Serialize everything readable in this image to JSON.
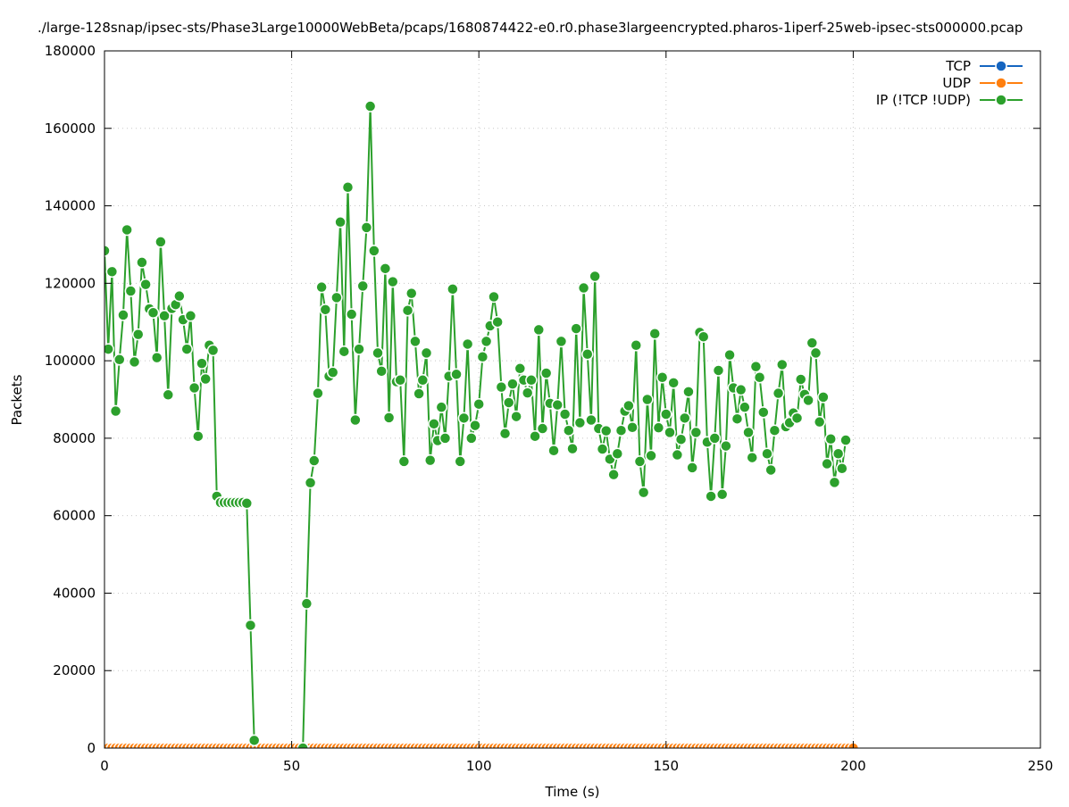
{
  "chart_data": {
    "type": "line",
    "title": "./large-128snap/ipsec-sts/Phase3Large10000WebBeta/pcaps/1680874422-e0.r0.phase3largeencrypted.pharos-1iperf-25web-ipsec-sts000000.pcap",
    "x_label": "Time (s)",
    "y_label": "Packets",
    "xlim": [
      0,
      250
    ],
    "xticks": [
      0,
      50,
      100,
      150,
      200,
      250
    ],
    "ylim": [
      0,
      180000
    ],
    "yticks": [
      0,
      20000,
      40000,
      60000,
      80000,
      100000,
      120000,
      140000,
      160000,
      180000
    ],
    "grid": true,
    "legend": "top-right",
    "x": [
      0,
      1,
      2,
      3,
      4,
      5,
      6,
      7,
      8,
      9,
      10,
      11,
      12,
      13,
      14,
      15,
      16,
      17,
      18,
      19,
      20,
      21,
      22,
      23,
      24,
      25,
      26,
      27,
      28,
      29,
      30,
      31,
      32,
      33,
      34,
      35,
      36,
      37,
      38,
      39,
      40,
      41,
      42,
      43,
      44,
      45,
      46,
      47,
      48,
      49,
      50,
      51,
      52,
      53,
      54,
      55,
      56,
      57,
      58,
      59,
      60,
      61,
      62,
      63,
      64,
      65,
      66,
      67,
      68,
      69,
      70,
      71,
      72,
      73,
      74,
      75,
      76,
      77,
      78,
      79,
      80,
      81,
      82,
      83,
      84,
      85,
      86,
      87,
      88,
      89,
      90,
      91,
      92,
      93,
      94,
      95,
      96,
      97,
      98,
      99,
      100,
      101,
      102,
      103,
      104,
      105,
      106,
      107,
      108,
      109,
      110,
      111,
      112,
      113,
      114,
      115,
      116,
      117,
      118,
      119,
      120,
      121,
      122,
      123,
      124,
      125,
      126,
      127,
      128,
      129,
      130,
      131,
      132,
      133,
      134,
      135,
      136,
      137,
      138,
      139,
      140,
      141,
      142,
      143,
      144,
      145,
      146,
      147,
      148,
      149,
      150,
      151,
      152,
      153,
      154,
      155,
      156,
      157,
      158,
      159,
      160,
      161,
      162,
      163,
      164,
      165,
      166,
      167,
      168,
      169,
      170,
      171,
      172,
      173,
      174,
      175,
      176,
      177,
      178,
      179,
      180,
      181,
      182,
      183,
      184,
      185,
      186,
      187,
      188,
      189,
      190,
      191,
      192,
      193,
      194,
      195,
      196,
      197,
      198,
      199,
      200
    ],
    "series": [
      {
        "name": "TCP",
        "color": "#1565c0",
        "values": [
          0,
          0,
          0,
          0,
          0,
          0,
          0,
          0,
          0,
          0,
          0,
          0,
          0,
          0,
          0,
          0,
          0,
          0,
          0,
          0,
          0,
          0,
          0,
          0,
          0,
          0,
          0,
          0,
          0,
          0,
          0,
          0,
          0,
          0,
          0,
          0,
          0,
          0,
          0,
          0,
          0,
          0,
          0,
          0,
          0,
          0,
          0,
          0,
          0,
          0,
          0,
          0,
          0,
          0,
          0,
          0,
          0,
          0,
          0,
          0,
          0,
          0,
          0,
          0,
          0,
          0,
          0,
          0,
          0,
          0,
          0,
          0,
          0,
          0,
          0,
          0,
          0,
          0,
          0,
          0,
          0,
          0,
          0,
          0,
          0,
          0,
          0,
          0,
          0,
          0,
          0,
          0,
          0,
          0,
          0,
          0,
          0,
          0,
          0,
          0,
          0,
          0,
          0,
          0,
          0,
          0,
          0,
          0,
          0,
          0,
          0,
          0,
          0,
          0,
          0,
          0,
          0,
          0,
          0,
          0,
          0,
          0,
          0,
          0,
          0,
          0,
          0,
          0,
          0,
          0,
          0,
          0,
          0,
          0,
          0,
          0,
          0,
          0,
          0,
          0,
          0,
          0,
          0,
          0,
          0,
          0,
          0,
          0,
          0,
          0,
          0,
          0,
          0,
          0,
          0,
          0,
          0,
          0,
          0,
          0,
          0,
          0,
          0,
          0,
          0,
          0,
          0,
          0,
          0,
          0,
          0,
          0,
          0,
          0,
          0,
          0,
          0,
          0,
          0,
          0,
          0,
          0,
          0,
          0,
          0,
          0,
          0,
          0,
          0,
          0,
          0,
          0,
          0,
          0,
          0,
          0,
          0,
          0,
          0,
          0,
          0
        ]
      },
      {
        "name": "UDP",
        "color": "#ff7f0e",
        "values": [
          0,
          0,
          0,
          0,
          0,
          0,
          0,
          0,
          0,
          0,
          0,
          0,
          0,
          0,
          0,
          0,
          0,
          0,
          0,
          0,
          0,
          0,
          0,
          0,
          0,
          0,
          0,
          0,
          0,
          0,
          0,
          0,
          0,
          0,
          0,
          0,
          0,
          0,
          0,
          0,
          0,
          0,
          0,
          0,
          0,
          0,
          0,
          0,
          0,
          0,
          0,
          0,
          0,
          0,
          0,
          0,
          0,
          0,
          0,
          0,
          0,
          0,
          0,
          0,
          0,
          0,
          0,
          0,
          0,
          0,
          0,
          0,
          0,
          0,
          0,
          0,
          0,
          0,
          0,
          0,
          0,
          0,
          0,
          0,
          0,
          0,
          0,
          0,
          0,
          0,
          0,
          0,
          0,
          0,
          0,
          0,
          0,
          0,
          0,
          0,
          0,
          0,
          0,
          0,
          0,
          0,
          0,
          0,
          0,
          0,
          0,
          0,
          0,
          0,
          0,
          0,
          0,
          0,
          0,
          0,
          0,
          0,
          0,
          0,
          0,
          0,
          0,
          0,
          0,
          0,
          0,
          0,
          0,
          0,
          0,
          0,
          0,
          0,
          0,
          0,
          0,
          0,
          0,
          0,
          0,
          0,
          0,
          0,
          0,
          0,
          0,
          0,
          0,
          0,
          0,
          0,
          0,
          0,
          0,
          0,
          0,
          0,
          0,
          0,
          0,
          0,
          0,
          0,
          0,
          0,
          0,
          0,
          0,
          0,
          0,
          0,
          0,
          0,
          0,
          0,
          0,
          0,
          0,
          0,
          0,
          0,
          0,
          0,
          0,
          0,
          0,
          0,
          0,
          0,
          0,
          0,
          0,
          0,
          0,
          0,
          0
        ]
      },
      {
        "name": "IP (!TCP  !UDP)",
        "color": "#2ca02c",
        "values": [
          128400,
          103000,
          123000,
          87000,
          100300,
          111800,
          133800,
          118000,
          99700,
          106800,
          125400,
          119700,
          113400,
          112400,
          100800,
          130700,
          111600,
          91200,
          113500,
          114500,
          116700,
          110600,
          103000,
          111600,
          93000,
          80500,
          99300,
          95300,
          104000,
          102700,
          65000,
          63400,
          63400,
          63400,
          63400,
          63400,
          63400,
          63400,
          63200,
          31700,
          2000,
          null,
          null,
          null,
          null,
          null,
          null,
          null,
          null,
          null,
          null,
          null,
          null,
          0,
          37300,
          68500,
          74200,
          91600,
          119000,
          113200,
          96000,
          97000,
          116300,
          135800,
          102400,
          144800,
          112000,
          84700,
          103000,
          119300,
          134400,
          165700,
          128400,
          102000,
          97300,
          123800,
          85300,
          120400,
          94600,
          95000,
          74000,
          113000,
          117400,
          105000,
          91500,
          95000,
          102000,
          74300,
          83700,
          79400,
          88000,
          80000,
          96000,
          118500,
          96500,
          74000,
          85200,
          104300,
          80000,
          83300,
          88800,
          101000,
          105000,
          109000,
          116500,
          110000,
          93200,
          81200,
          89200,
          94000,
          85600,
          98000,
          95000,
          91700,
          95000,
          80500,
          108000,
          82500,
          96800,
          89000,
          76800,
          88600,
          105000,
          86200,
          82000,
          77300,
          108300,
          84000,
          118800,
          101700,
          84700,
          121800,
          82500,
          77200,
          81900,
          74600,
          70600,
          76000,
          82000,
          87000,
          88400,
          82800,
          104000,
          74000,
          66000,
          90000,
          75500,
          107000,
          82700,
          95700,
          86200,
          81500,
          94300,
          75700,
          79700,
          85200,
          92000,
          72400,
          81500,
          107300,
          106200,
          79000,
          65000,
          80000,
          97500,
          65500,
          78000,
          101500,
          93000,
          85000,
          92500,
          88000,
          81500,
          75000,
          98500,
          95700,
          86700,
          76000,
          71800,
          82000,
          91600,
          99000,
          83000,
          84000,
          86500,
          85200,
          95200,
          91300,
          89800,
          104600,
          102000,
          84200,
          90600,
          73400,
          79800,
          68600,
          76000,
          72200,
          79500,
          null,
          null
        ]
      }
    ]
  }
}
